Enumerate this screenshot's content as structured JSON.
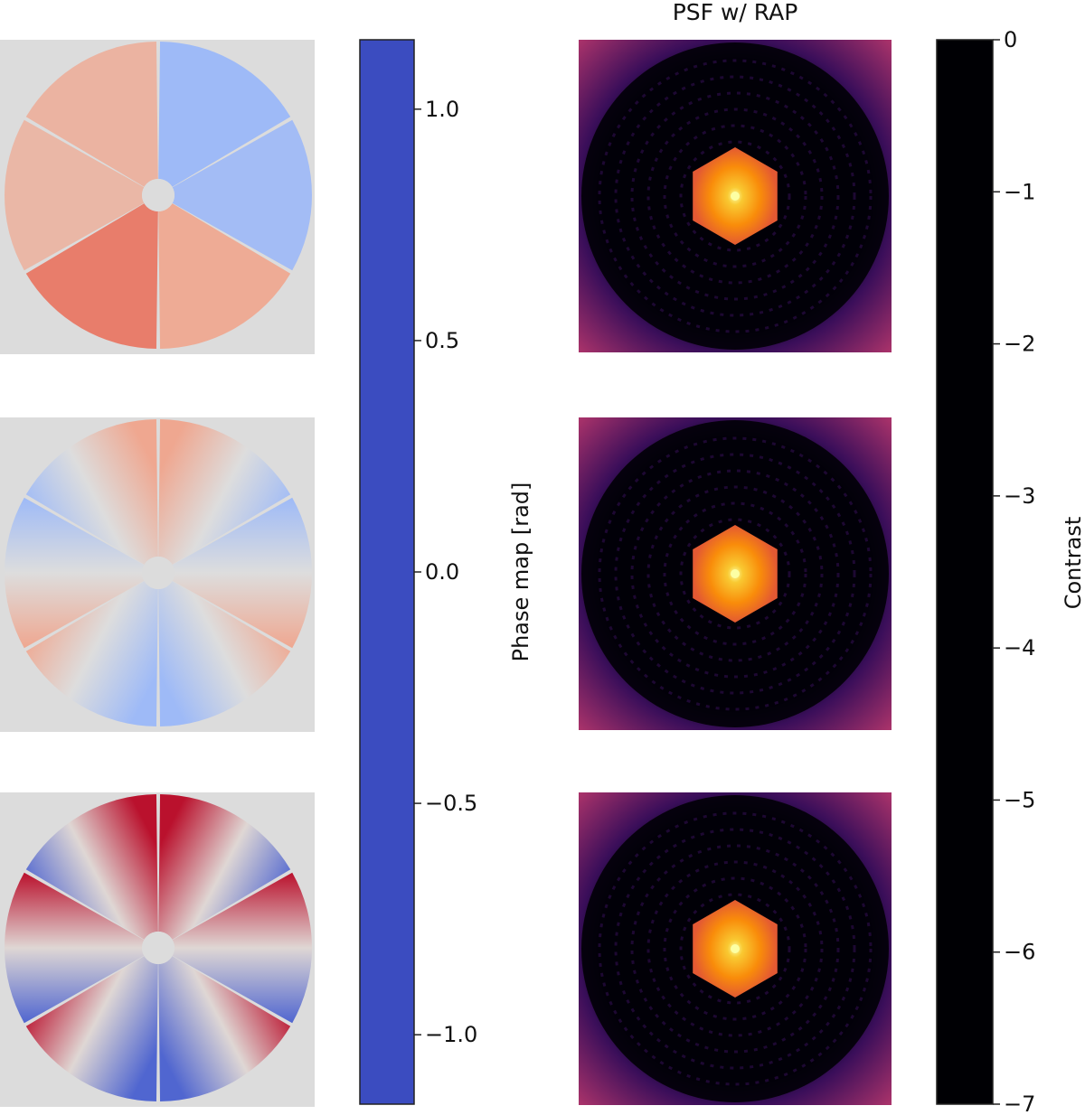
{
  "chart_data": [
    {
      "type": "heatmap",
      "description_role": "phase maps (left column)",
      "panels": [
        {
          "name": "phase-map-1",
          "segment_piston_rad": [
            -0.45,
            -0.42,
            0.42,
            0.68,
            0.32,
            0.35
          ]
        },
        {
          "name": "phase-map-2",
          "segment_gradient_rad_min_max": [
            -0.45,
            0.45
          ]
        },
        {
          "name": "phase-map-3",
          "segment_gradient_rad_min_max": [
            -1.0,
            1.1
          ]
        }
      ],
      "colormap": "coolwarm",
      "colorbar": {
        "label": "Phase map [rad]",
        "vmin": -1.15,
        "vmax": 1.15,
        "ticks": [
          1.0,
          0.5,
          0.0,
          -0.5,
          -1.0
        ],
        "tick_labels": [
          "1.0",
          "0.5",
          "0.0",
          "−0.5",
          "−1.0"
        ]
      }
    },
    {
      "type": "heatmap",
      "title": "PSF w/ RAP",
      "panels": [
        {
          "name": "psf-1",
          "peak_contrast": 0
        },
        {
          "name": "psf-2",
          "peak_contrast": 0
        },
        {
          "name": "psf-3",
          "peak_contrast": 0
        }
      ],
      "colormap": "inferno",
      "colorbar": {
        "label": "Contrast",
        "vmin": -7,
        "vmax": 0,
        "ticks": [
          0,
          -1,
          -2,
          -3,
          -4,
          -5,
          -6,
          -7
        ],
        "tick_labels": [
          "0",
          "−1",
          "−2",
          "−3",
          "−4",
          "−5",
          "−6",
          "−7"
        ]
      }
    }
  ],
  "colors": {
    "coolwarm_low": "#3b4cc0",
    "coolwarm_mid": "#dddddd",
    "coolwarm_high": "#b40426",
    "inferno_low": "#000004",
    "inferno_high": "#fcffa4",
    "panel_background": "#dcdcdc"
  }
}
